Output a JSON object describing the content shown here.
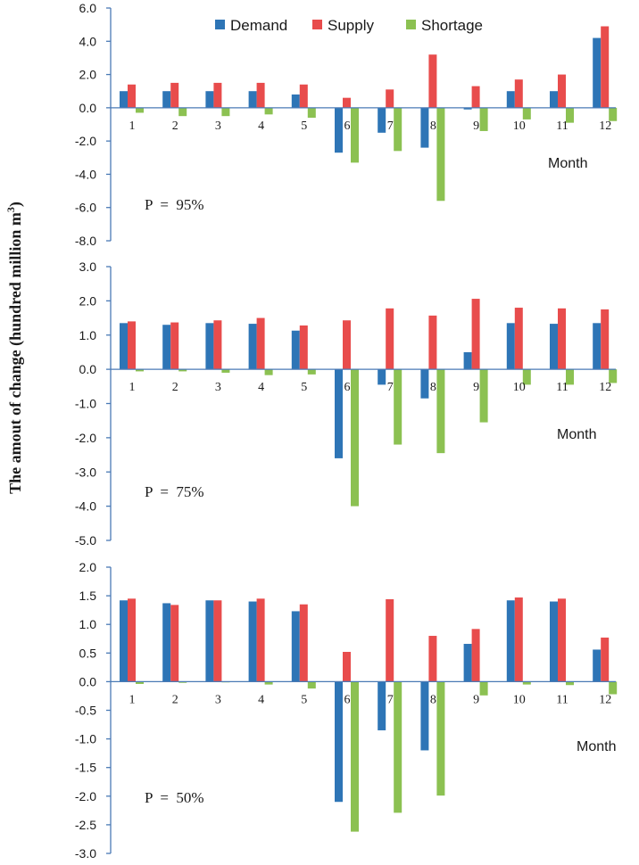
{
  "ylabel": "The amout of change (hundred million m",
  "ylabel_sup": "3",
  "ylabel_close": ")",
  "colors": {
    "demand": "#2e75b6",
    "supply": "#e84c4c",
    "shortage": "#8cc152",
    "axis": "#4a7ab5"
  },
  "legend": [
    {
      "key": "demand",
      "label": "Demand"
    },
    {
      "key": "supply",
      "label": "Supply"
    },
    {
      "key": "shortage",
      "label": "Shortage"
    }
  ],
  "chart_data": [
    {
      "type": "bar",
      "title": "P = 95%",
      "p_label": "P  =  95%",
      "xlabel": "Month",
      "categories": [
        "1",
        "2",
        "3",
        "4",
        "5",
        "6",
        "7",
        "8",
        "9",
        "10",
        "11",
        "12"
      ],
      "ylim": [
        -8.0,
        6.0
      ],
      "yticks": [
        6.0,
        4.0,
        2.0,
        0.0,
        -2.0,
        -4.0,
        -6.0,
        -8.0
      ],
      "ytick_labels": [
        "6.0",
        "4.0",
        "2.0",
        "0.0",
        "-2.0",
        "-4.0",
        "-6.0",
        "-8.0"
      ],
      "series": [
        {
          "name": "Demand",
          "key": "demand",
          "values": [
            1.0,
            1.0,
            1.0,
            1.0,
            0.8,
            -2.7,
            -1.5,
            -2.4,
            -0.1,
            1.0,
            1.0,
            4.2
          ]
        },
        {
          "name": "Supply",
          "key": "supply",
          "values": [
            1.4,
            1.5,
            1.5,
            1.5,
            1.4,
            0.6,
            1.1,
            3.2,
            1.3,
            1.7,
            2.0,
            4.9
          ]
        },
        {
          "name": "Shortage",
          "key": "shortage",
          "values": [
            -0.3,
            -0.5,
            -0.5,
            -0.4,
            -0.6,
            -3.3,
            -2.6,
            -5.6,
            -1.4,
            -0.7,
            -0.9,
            -0.8
          ]
        }
      ]
    },
    {
      "type": "bar",
      "title": "P = 75%",
      "p_label": "P  =  75%",
      "xlabel": "Month",
      "categories": [
        "1",
        "2",
        "3",
        "4",
        "5",
        "6",
        "7",
        "8",
        "9",
        "10",
        "11",
        "12"
      ],
      "ylim": [
        -5.0,
        3.0
      ],
      "yticks": [
        3.0,
        2.0,
        1.0,
        0.0,
        -1.0,
        -2.0,
        -3.0,
        -4.0,
        -5.0
      ],
      "ytick_labels": [
        "3.0",
        "2.0",
        "1.0",
        "0.0",
        "-1.0",
        "-2.0",
        "-3.0",
        "-4.0",
        "-5.0"
      ],
      "series": [
        {
          "name": "Demand",
          "key": "demand",
          "values": [
            1.35,
            1.3,
            1.35,
            1.33,
            1.13,
            -2.6,
            -0.45,
            -0.85,
            0.5,
            1.35,
            1.33,
            1.35
          ]
        },
        {
          "name": "Supply",
          "key": "supply",
          "values": [
            1.4,
            1.37,
            1.43,
            1.5,
            1.28,
            1.43,
            1.78,
            1.57,
            2.06,
            1.8,
            1.78,
            1.75
          ]
        },
        {
          "name": "Shortage",
          "key": "shortage",
          "values": [
            -0.06,
            -0.06,
            -0.1,
            -0.17,
            -0.15,
            -4.0,
            -2.2,
            -2.45,
            -1.55,
            -0.45,
            -0.45,
            -0.4
          ]
        }
      ]
    },
    {
      "type": "bar",
      "title": "P = 50%",
      "p_label": "P  =  50%",
      "xlabel": "Month",
      "categories": [
        "1",
        "2",
        "3",
        "4",
        "5",
        "6",
        "7",
        "8",
        "9",
        "10",
        "11",
        "12"
      ],
      "ylim": [
        -3.0,
        2.0
      ],
      "yticks": [
        2.0,
        1.5,
        1.0,
        0.5,
        0.0,
        -0.5,
        -1.0,
        -1.5,
        -2.0,
        -2.5,
        -3.0
      ],
      "ytick_labels": [
        "2.0",
        "1.5",
        "1.0",
        "0.5",
        "0.0",
        "-0.5",
        "-1.0",
        "-1.5",
        "-2.0",
        "-2.5",
        "-3.0"
      ],
      "series": [
        {
          "name": "Demand",
          "key": "demand",
          "values": [
            1.42,
            1.37,
            1.42,
            1.4,
            1.23,
            -2.1,
            -0.85,
            -1.2,
            0.66,
            1.42,
            1.4,
            0.56
          ]
        },
        {
          "name": "Supply",
          "key": "supply",
          "values": [
            1.45,
            1.34,
            1.42,
            1.45,
            1.35,
            0.52,
            1.44,
            0.8,
            0.92,
            1.47,
            1.45,
            0.77
          ]
        },
        {
          "name": "Shortage",
          "key": "shortage",
          "values": [
            -0.04,
            -0.02,
            -0.01,
            -0.05,
            -0.12,
            -2.62,
            -2.29,
            -1.99,
            -0.24,
            -0.05,
            -0.06,
            -0.22
          ]
        }
      ]
    }
  ]
}
